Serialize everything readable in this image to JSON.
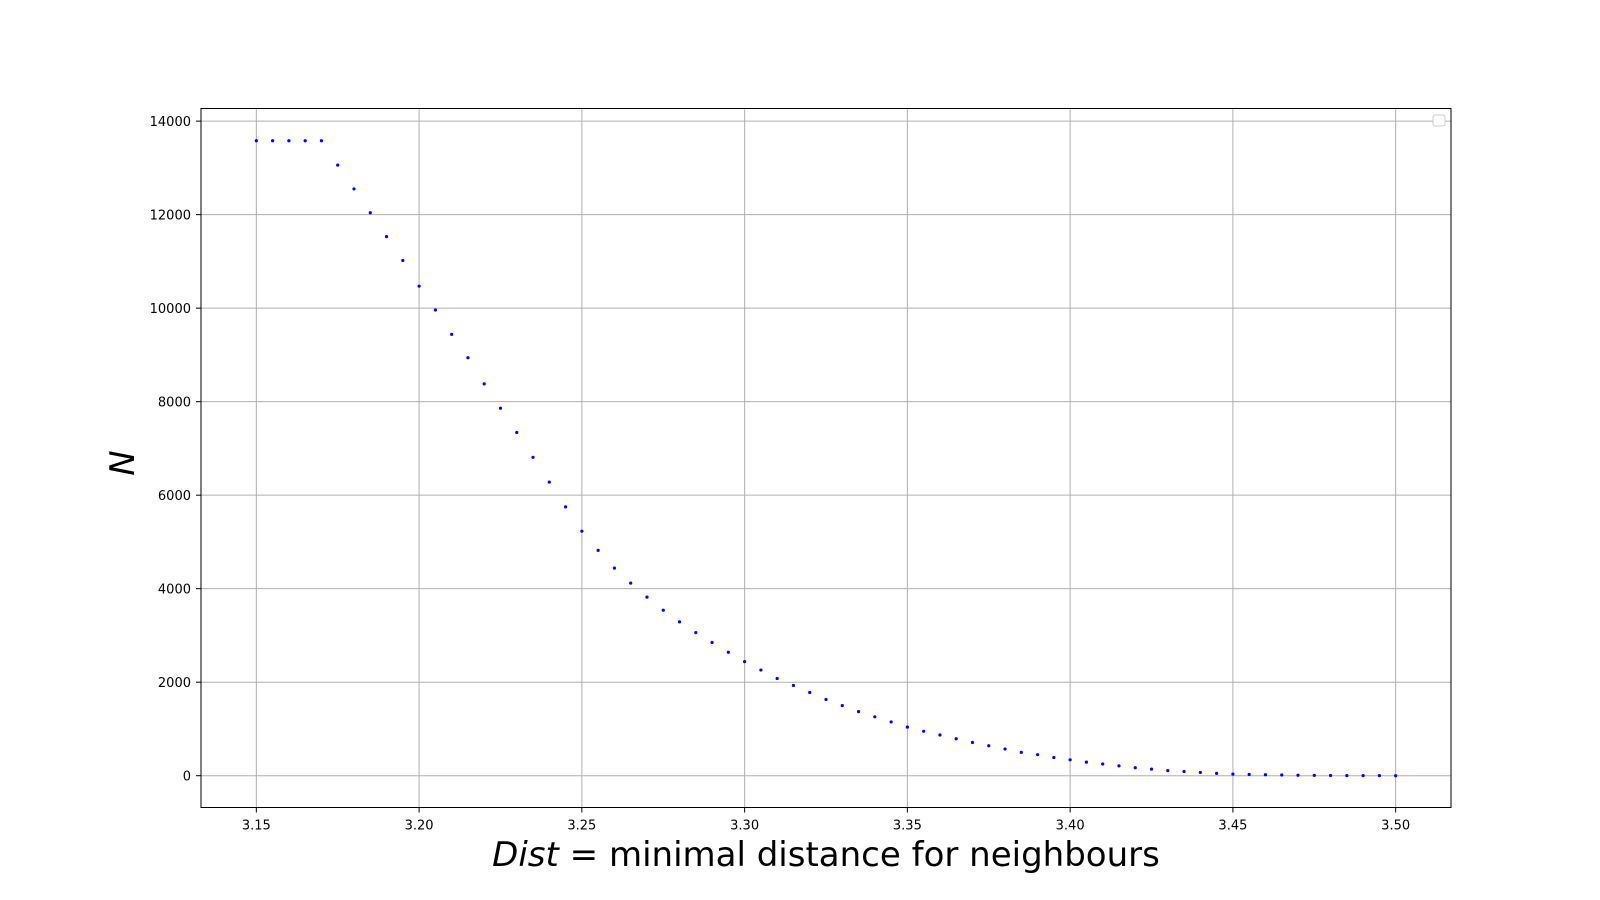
{
  "chart_data": {
    "type": "scatter",
    "xlabel_italic": "Dist",
    "xlabel_rest": " = minimal distance for neighbours",
    "ylabel": "N",
    "xlim": [
      3.133,
      3.517
    ],
    "ylim": [
      -680,
      14270
    ],
    "xticks": [
      3.15,
      3.2,
      3.25,
      3.3,
      3.35,
      3.4,
      3.45,
      3.5
    ],
    "xtick_labels": [
      "3.15",
      "3.20",
      "3.25",
      "3.30",
      "3.35",
      "3.40",
      "3.45",
      "3.50"
    ],
    "yticks": [
      0,
      2000,
      4000,
      6000,
      8000,
      10000,
      12000,
      14000
    ],
    "ytick_labels": [
      "0",
      "2000",
      "4000",
      "6000",
      "8000",
      "10000",
      "12000",
      "14000"
    ],
    "grid": true,
    "legend": "top-right",
    "marker_color": "#0000ff",
    "series": [
      {
        "x": [
          3.15,
          3.155,
          3.16,
          3.165,
          3.17,
          3.175,
          3.18,
          3.185,
          3.19,
          3.195,
          3.2,
          3.205,
          3.21,
          3.215,
          3.22,
          3.225,
          3.23,
          3.235,
          3.24,
          3.245,
          3.25,
          3.255,
          3.26,
          3.265,
          3.27,
          3.275,
          3.28,
          3.285,
          3.29,
          3.295,
          3.3,
          3.305,
          3.31,
          3.315,
          3.32,
          3.325,
          3.33,
          3.335,
          3.34,
          3.345,
          3.35,
          3.355,
          3.36,
          3.365,
          3.37,
          3.375,
          3.38,
          3.385,
          3.39,
          3.395,
          3.4,
          3.405,
          3.41,
          3.415,
          3.42,
          3.425,
          3.43,
          3.435,
          3.44,
          3.445,
          3.45,
          3.455,
          3.46,
          3.465,
          3.47,
          3.475,
          3.48,
          3.485,
          3.49,
          3.495,
          3.5
        ],
        "y": [
          13580,
          13580,
          13580,
          13580,
          13580,
          13060,
          12550,
          12040,
          11530,
          11020,
          10470,
          9960,
          9440,
          8940,
          8380,
          7860,
          7340,
          6810,
          6280,
          5750,
          5230,
          4820,
          4440,
          4120,
          3820,
          3540,
          3290,
          3060,
          2850,
          2640,
          2440,
          2260,
          2080,
          1930,
          1780,
          1630,
          1500,
          1370,
          1260,
          1150,
          1040,
          950,
          870,
          790,
          710,
          640,
          570,
          500,
          450,
          390,
          340,
          290,
          250,
          210,
          170,
          140,
          110,
          90,
          70,
          50,
          35,
          25,
          20,
          15,
          10,
          8,
          5,
          3,
          2,
          1,
          0
        ]
      }
    ]
  }
}
